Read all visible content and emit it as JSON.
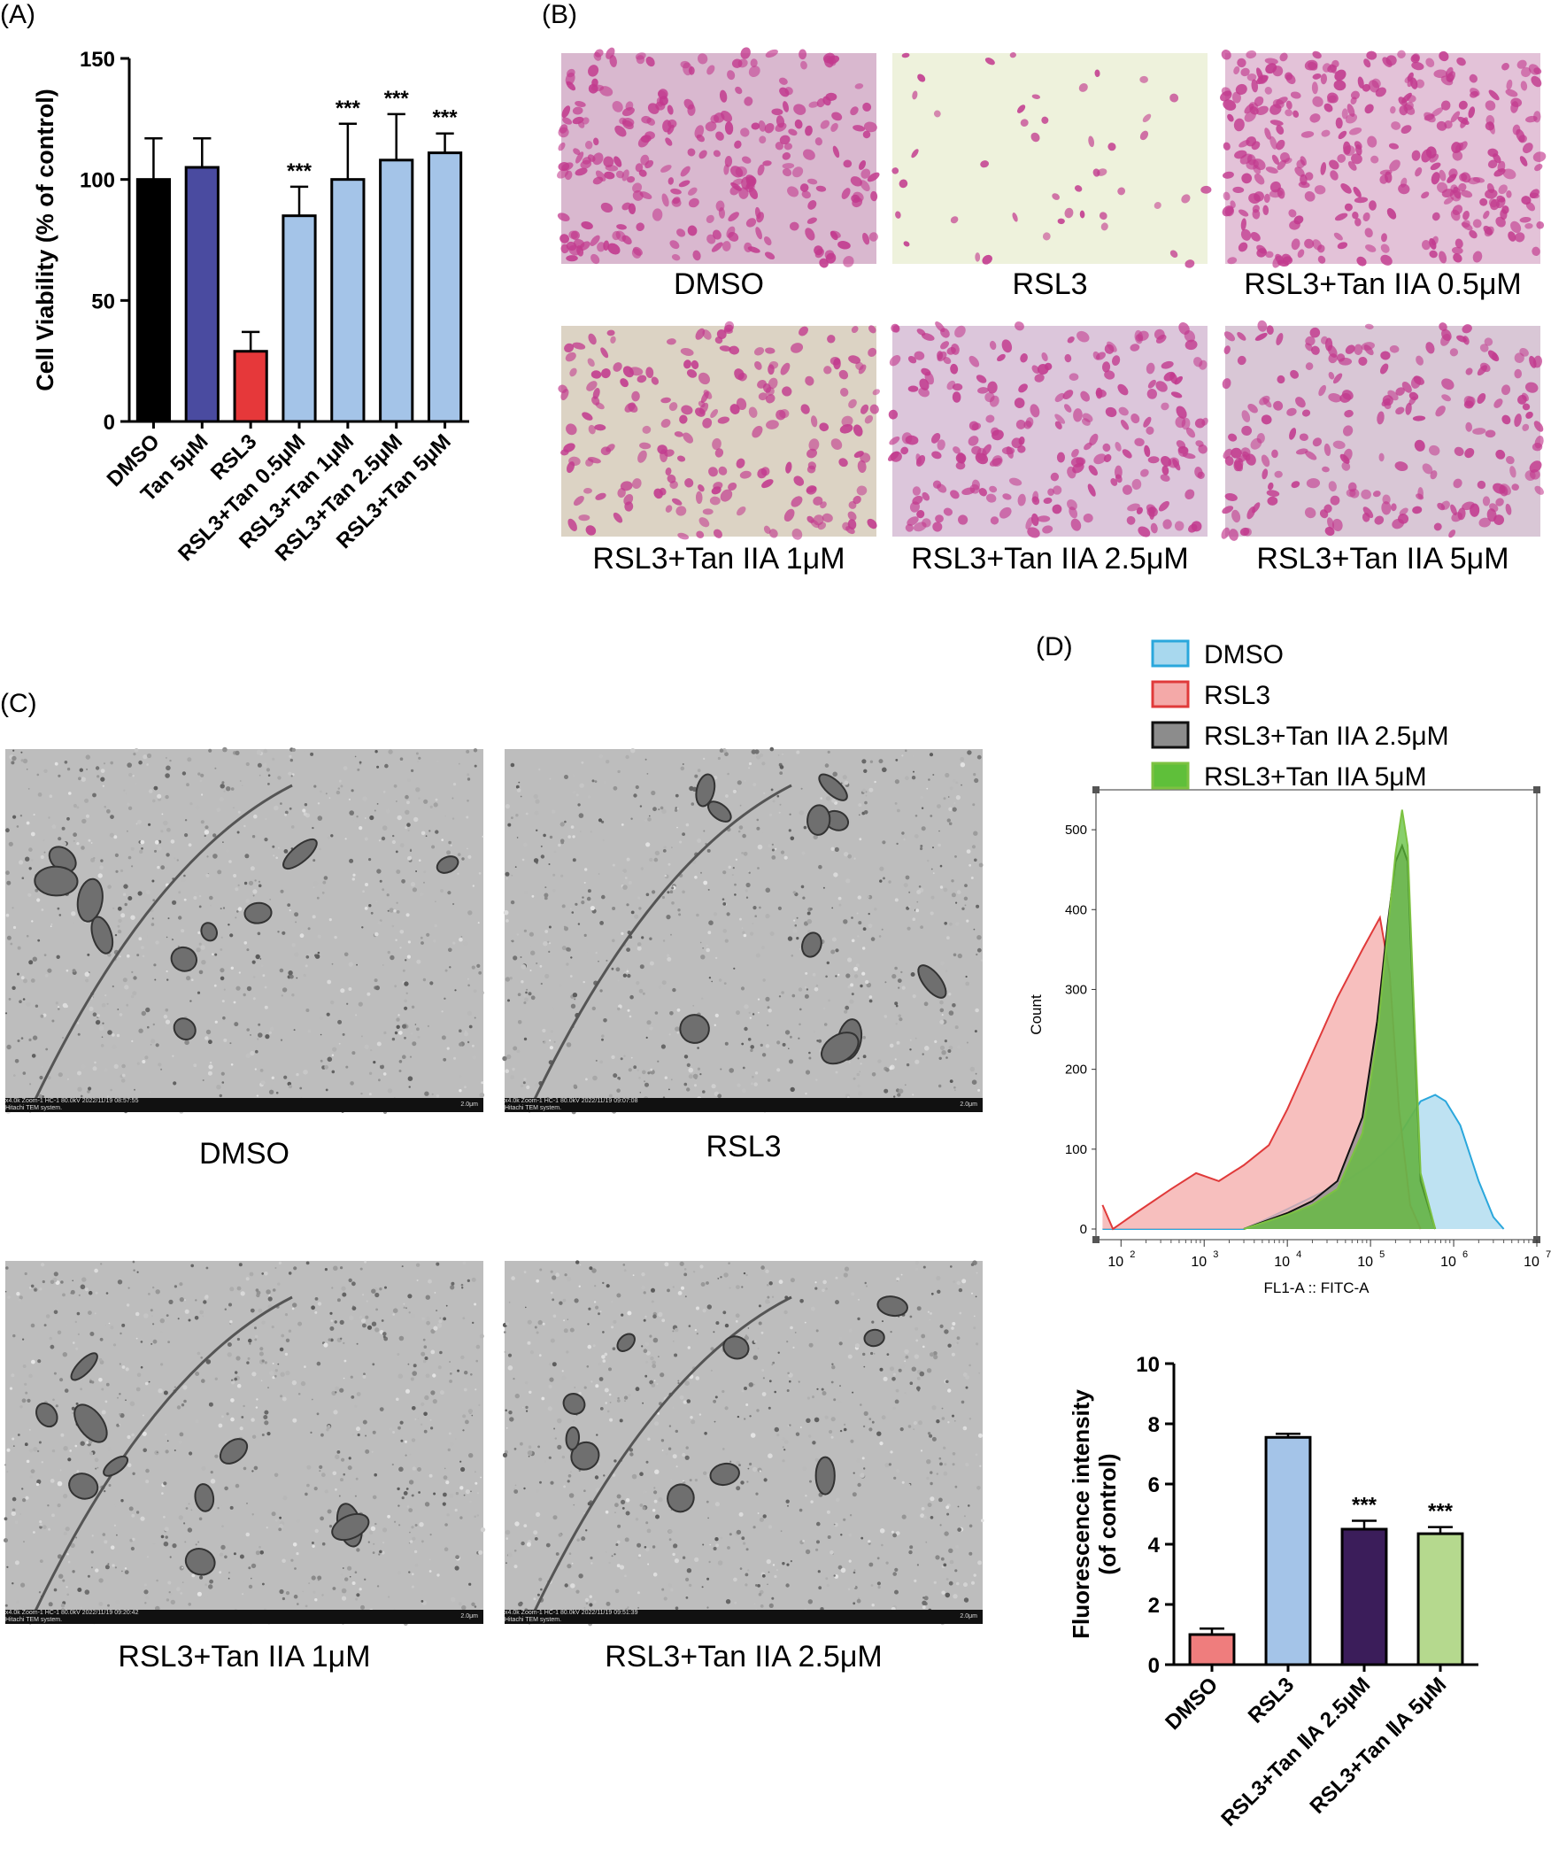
{
  "panels": {
    "a": "(A)",
    "b": "(B)",
    "c": "(C)",
    "d": "(D)"
  },
  "stain_images": [
    {
      "caption": "DMSO"
    },
    {
      "caption": "RSL3"
    },
    {
      "caption": "RSL3+Tan IIA 0.5μM"
    },
    {
      "caption": "RSL3+Tan IIA 1μM"
    },
    {
      "caption": "RSL3+Tan IIA 2.5μM"
    },
    {
      "caption": "RSL3+Tan IIA 5μM"
    }
  ],
  "tem_images": [
    {
      "caption": "DMSO",
      "footer": "x4.0k Zoom-1 HC-1 80.0kV 2022/11/19 08:57:55",
      "footer2": "Hitachi TEM system.",
      "scale": "2.0μm"
    },
    {
      "caption": "RSL3",
      "footer": "x4.0k Zoom-1 HC-1 80.0kV 2022/11/19 09:07:08",
      "footer2": "Hitachi TEM system.",
      "scale": "2.0μm"
    },
    {
      "caption": "RSL3+Tan IIA 1μM",
      "footer": "x4.0k Zoom-1 HC-1 80.0kV 2022/11/19 09:20:42",
      "footer2": "Hitachi TEM system.",
      "scale": "2.0μm"
    },
    {
      "caption": "RSL3+Tan IIA 2.5μM",
      "footer": "x4.0k Zoom-1 HC-1 80.0kV 2022/11/19 09:51:39",
      "footer2": "Hitachi TEM system.",
      "scale": "2.0μm"
    }
  ],
  "chart_data": [
    {
      "id": "A",
      "type": "bar",
      "ylabel": "Cell Viability (% of control)",
      "xlabel": "",
      "ylim": [
        0,
        150
      ],
      "yticks": [
        0,
        50,
        100,
        150
      ],
      "categories": [
        "DMSO",
        "Tan 5μM",
        "RSL3",
        "RSL3+Tan 0.5μM",
        "RSL3+Tan 1μM",
        "RSL3+Tan 2.5μM",
        "RSL3+Tan 5μM"
      ],
      "values": [
        100,
        105,
        29,
        85,
        100,
        108,
        111
      ],
      "errors": [
        17,
        12,
        8,
        12,
        23,
        19,
        8
      ],
      "colors": [
        "#000000",
        "#4a4ba0",
        "#e6383a",
        "#a4c4e8",
        "#a4c4e8",
        "#a4c4e8",
        "#a4c4e8"
      ],
      "annotations": [
        "",
        "",
        "",
        "***",
        "***",
        "***",
        "***"
      ]
    },
    {
      "id": "D-histogram",
      "type": "area",
      "xlabel": "FL1-A :: FITC-A",
      "ylabel": "Count",
      "xscale": "log",
      "xlim": [
        50,
        10000000
      ],
      "ylim": [
        0,
        550
      ],
      "yticks": [
        0,
        100,
        200,
        300,
        400,
        500
      ],
      "xticks": [
        {
          "base": "10",
          "exp": "2"
        },
        {
          "base": "10",
          "exp": "3"
        },
        {
          "base": "10",
          "exp": "4"
        },
        {
          "base": "10",
          "exp": "5"
        },
        {
          "base": "10",
          "exp": "6"
        },
        {
          "base": "10",
          "exp": "7"
        }
      ],
      "legend": [
        "DMSO",
        "RSL3",
        "RSL3+Tan IIA 2.5μM",
        "RSL3+Tan IIA 5μM"
      ],
      "legend_position": "top",
      "series": [
        {
          "name": "DMSO",
          "stroke": "#2aa7dc",
          "fill": "#a8d8ee",
          "x": [
            60,
            3000,
            5000,
            10000,
            20000,
            50000,
            100000,
            200000,
            400000,
            600000,
            800000,
            1200000,
            2000000,
            3000000,
            4000000
          ],
          "y": [
            0,
            0,
            10,
            25,
            40,
            60,
            80,
            110,
            160,
            168,
            160,
            130,
            60,
            15,
            0
          ]
        },
        {
          "name": "RSL3",
          "stroke": "#e03a3a",
          "fill": "#f4a9a8",
          "x": [
            60,
            80,
            150,
            400,
            800,
            1500,
            3000,
            6000,
            10000,
            20000,
            40000,
            80000,
            130000,
            170000,
            220000,
            300000,
            400000
          ],
          "y": [
            30,
            0,
            20,
            50,
            70,
            60,
            80,
            105,
            150,
            220,
            290,
            350,
            390,
            320,
            150,
            30,
            0
          ]
        },
        {
          "name": "RSL3+Tan IIA 2.5μM",
          "stroke": "#111111",
          "fill": "#8c8c8c",
          "x": [
            3000,
            10000,
            20000,
            40000,
            80000,
            120000,
            160000,
            200000,
            240000,
            280000,
            320000,
            400000,
            600000
          ],
          "y": [
            0,
            20,
            35,
            60,
            140,
            260,
            380,
            460,
            480,
            460,
            300,
            60,
            0
          ]
        },
        {
          "name": "RSL3+Tan IIA 5μM",
          "stroke": "#7cc242",
          "fill": "#5fbf3a",
          "x": [
            3000,
            10000,
            20000,
            40000,
            80000,
            120000,
            160000,
            200000,
            240000,
            280000,
            320000,
            400000,
            600000
          ],
          "y": [
            0,
            18,
            30,
            50,
            120,
            240,
            370,
            470,
            525,
            480,
            320,
            70,
            0
          ]
        }
      ]
    },
    {
      "id": "D-bar",
      "type": "bar",
      "ylabel": "Fluorescence intensity\n(of control)",
      "xlabel": "",
      "ylim": [
        0,
        10
      ],
      "yticks": [
        0,
        2,
        4,
        6,
        8,
        10
      ],
      "categories": [
        "DMSO",
        "RSL3",
        "RSL3+Tan ⅡA 2.5μM",
        "RSL3+Tan ⅡA 5μM"
      ],
      "values": [
        1.0,
        7.55,
        4.5,
        4.35
      ],
      "errors": [
        0.2,
        0.12,
        0.28,
        0.22
      ],
      "colors": [
        "#ef7d7d",
        "#a4c4e8",
        "#3b1d5a",
        "#b5d98e"
      ],
      "annotations": [
        "",
        "",
        "***",
        "***"
      ]
    }
  ]
}
